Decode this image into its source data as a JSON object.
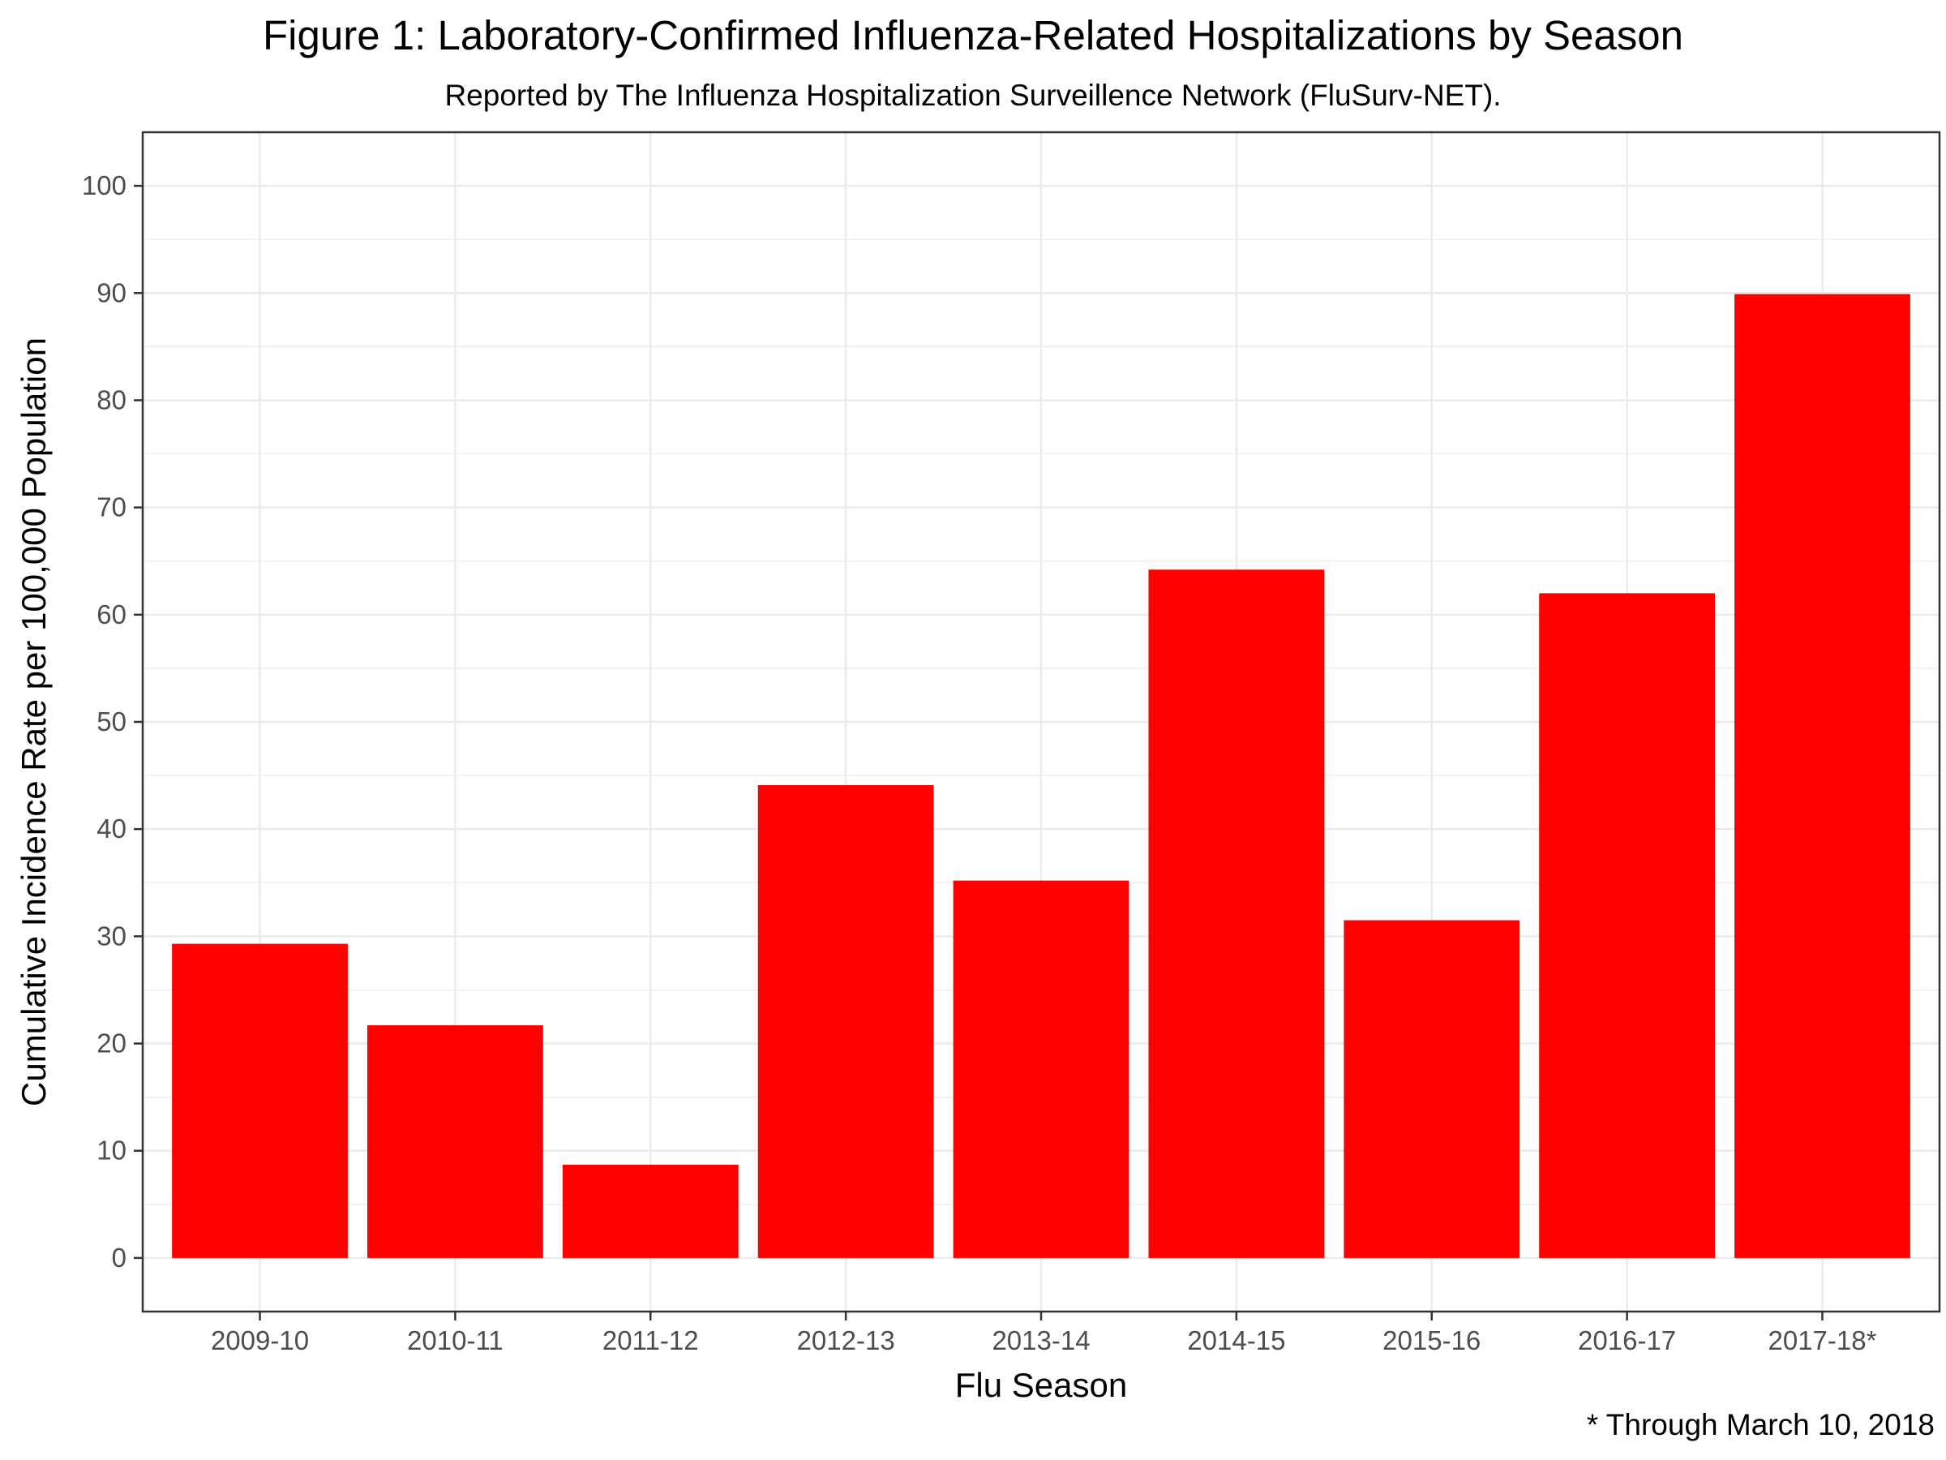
{
  "chart_data": {
    "type": "bar",
    "title": "Figure 1: Laboratory-Confirmed Influenza-Related Hospitalizations by Season",
    "subtitle": "Reported by The Influenza Hospitalization Surveillence Network (FluSurv-NET).",
    "caption": "* Through March 10, 2018",
    "xlabel": "Flu Season",
    "ylabel": "Cumulative Incidence Rate per 100,000 Population",
    "categories": [
      "2009-10",
      "2010-11",
      "2011-12",
      "2012-13",
      "2013-14",
      "2014-15",
      "2015-16",
      "2016-17",
      "2017-18*"
    ],
    "values": [
      29.3,
      21.7,
      8.7,
      44.1,
      35.2,
      64.2,
      31.5,
      62.0,
      89.9
    ],
    "ylim": [
      -5,
      105
    ],
    "yticks": [
      0,
      10,
      20,
      30,
      40,
      50,
      60,
      70,
      80,
      90,
      100
    ],
    "grid": true,
    "bar_color": "#ff0000",
    "grid_color": "#ebebeb",
    "axis_color": "#333333"
  }
}
